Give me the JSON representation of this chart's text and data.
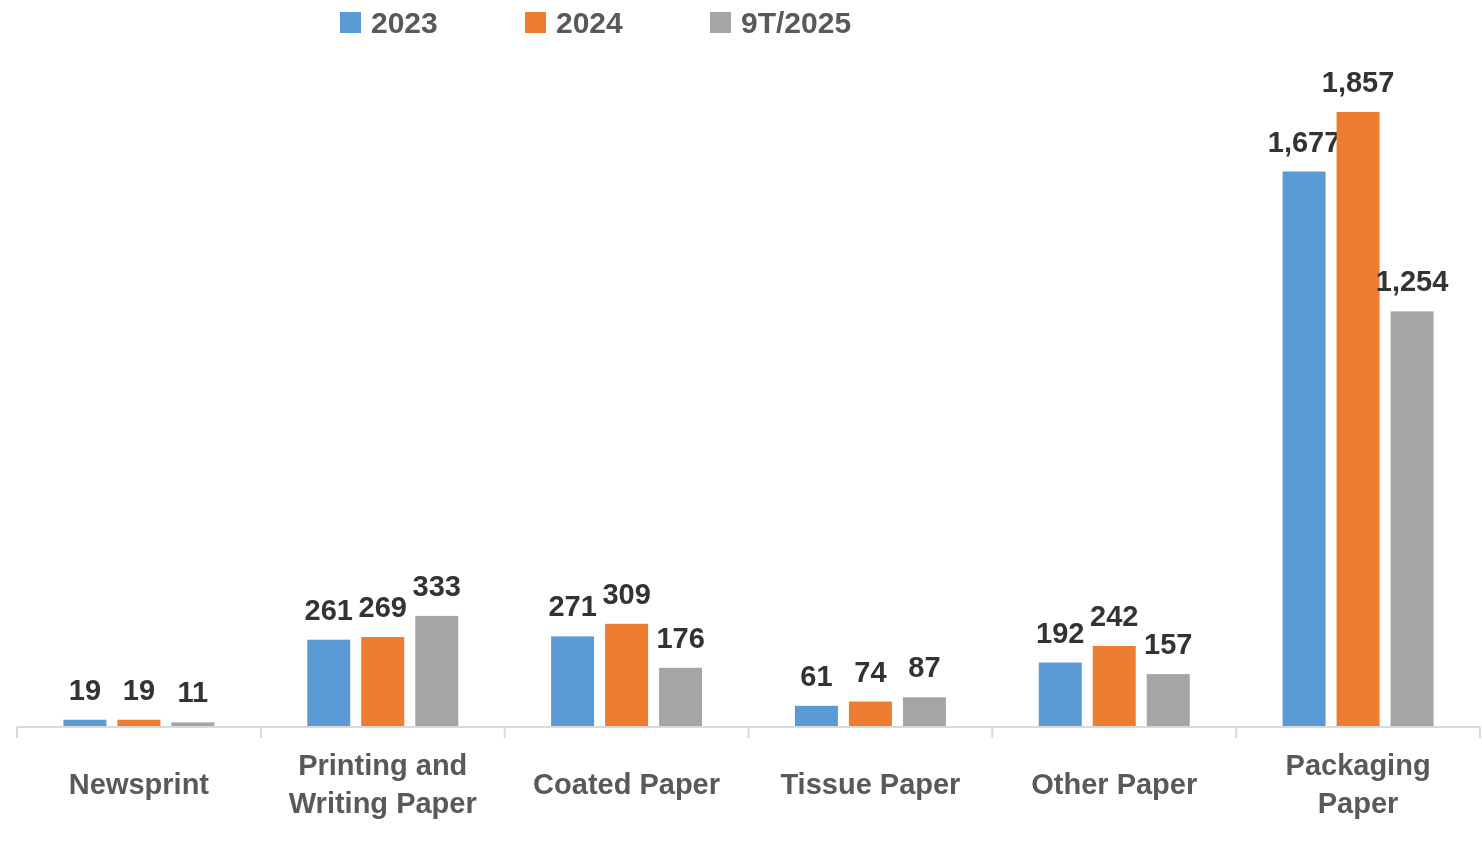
{
  "chart_data": {
    "type": "bar",
    "categories": [
      "Newsprint",
      "Printing and Writing Paper",
      "Coated Paper",
      "Tissue Paper",
      "Other Paper",
      "Packaging Paper"
    ],
    "series": [
      {
        "name": "2023",
        "color": "#5b9bd5",
        "values": [
          19,
          261,
          271,
          61,
          192,
          1677
        ],
        "value_labels": [
          "19",
          "261",
          "271",
          "61",
          "192",
          "1,677"
        ]
      },
      {
        "name": "2024",
        "color": "#ed7d31",
        "values": [
          19,
          269,
          309,
          74,
          242,
          1857
        ],
        "value_labels": [
          "19",
          "269",
          "309",
          "74",
          "242",
          "1,857"
        ]
      },
      {
        "name": "9T/2025",
        "color": "#a5a5a5",
        "values": [
          11,
          333,
          176,
          87,
          157,
          1254
        ],
        "value_labels": [
          "11",
          "333",
          "176",
          "87",
          "157",
          "1,254"
        ]
      }
    ],
    "legend": "top"
  }
}
